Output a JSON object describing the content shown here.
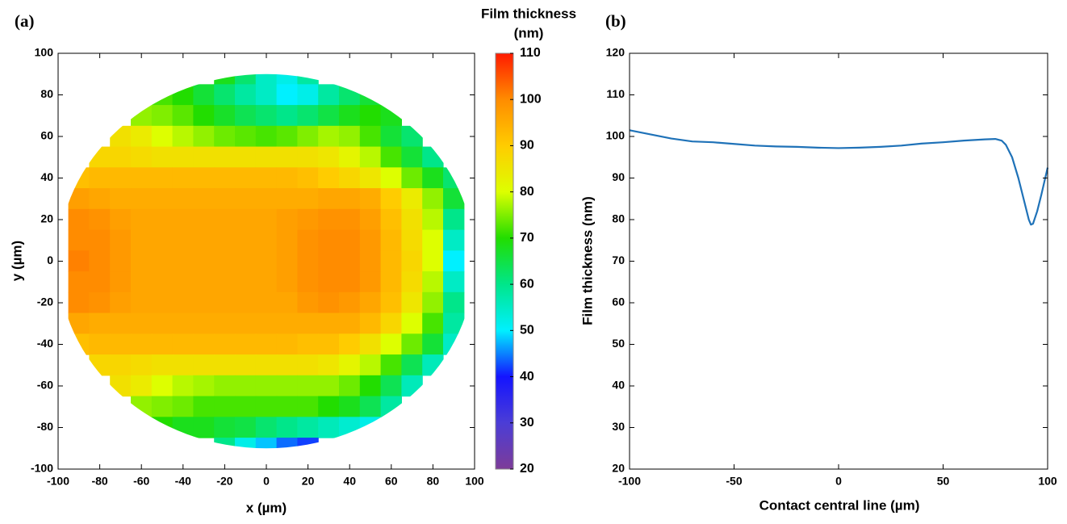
{
  "chart_data": [
    {
      "type": "contour",
      "panel_label": "(a)",
      "xlabel": "x (µm)",
      "ylabel": "y (µm)",
      "colorbar_label": [
        "Film thickness",
        "(nm)"
      ],
      "xlim": [
        -100,
        100
      ],
      "ylim": [
        -100,
        100
      ],
      "xticks": [
        -100,
        -80,
        -60,
        -40,
        -20,
        0,
        20,
        40,
        60,
        80,
        100
      ],
      "yticks": [
        -100,
        -80,
        -60,
        -40,
        -20,
        0,
        20,
        40,
        60,
        80,
        100
      ],
      "clim": [
        20,
        110
      ],
      "cticks": [
        20,
        30,
        40,
        50,
        60,
        70,
        80,
        90,
        100,
        110
      ],
      "colors": [
        "#7d3c98",
        "#4b3dd6",
        "#1414ff",
        "#00f0ff",
        "#00e68a",
        "#22dd00",
        "#ddff00",
        "#ffcc00",
        "#ff8c00",
        "#ff1a00"
      ],
      "x": [
        -90,
        -80,
        -70,
        -60,
        -50,
        -40,
        -30,
        -20,
        -10,
        0,
        10,
        20,
        30,
        40,
        50,
        60,
        70,
        80,
        90
      ],
      "y": [
        90,
        80,
        70,
        60,
        50,
        40,
        30,
        20,
        10,
        0,
        -10,
        -20,
        -30,
        -40,
        -50,
        -60,
        -70,
        -80,
        -90
      ],
      "z": [
        [
          null,
          null,
          null,
          null,
          null,
          null,
          null,
          68,
          62,
          55,
          52,
          58,
          null,
          null,
          null,
          null,
          null,
          null,
          null
        ],
        [
          null,
          null,
          null,
          null,
          72,
          70,
          66,
          62,
          58,
          55,
          50,
          52,
          58,
          62,
          66,
          null,
          null,
          null,
          null
        ],
        [
          null,
          null,
          null,
          76,
          75,
          73,
          70,
          67,
          64,
          62,
          60,
          62,
          65,
          68,
          70,
          68,
          null,
          null,
          null
        ],
        [
          null,
          null,
          86,
          84,
          80,
          78,
          76,
          74,
          73,
          72,
          73,
          75,
          77,
          76,
          72,
          66,
          62,
          null,
          null
        ],
        [
          null,
          88,
          88,
          87,
          86,
          86,
          86,
          86,
          86,
          86,
          86,
          86,
          85,
          82,
          78,
          72,
          66,
          60,
          null
        ],
        [
          92,
          93,
          93,
          93,
          93,
          93,
          93,
          93,
          93,
          93,
          93,
          92,
          90,
          88,
          85,
          80,
          74,
          68,
          62
        ],
        [
          97,
          96,
          95,
          95,
          95,
          95,
          95,
          95,
          95,
          95,
          95,
          95,
          96,
          96,
          95,
          90,
          84,
          76,
          66
        ],
        [
          100,
          99,
          97,
          96,
          96,
          96,
          96,
          96,
          96,
          96,
          97,
          98,
          99,
          99,
          97,
          92,
          86,
          78,
          60
        ],
        [
          100,
          100,
          98,
          96,
          96,
          96,
          96,
          96,
          96,
          96,
          97,
          99,
          100,
          100,
          98,
          93,
          87,
          80,
          55
        ],
        [
          101,
          100,
          98,
          96,
          96,
          96,
          96,
          96,
          96,
          96,
          97,
          99,
          100,
          100,
          98,
          93,
          88,
          80,
          50
        ],
        [
          100,
          100,
          98,
          96,
          96,
          96,
          96,
          96,
          96,
          96,
          97,
          99,
          100,
          100,
          98,
          93,
          87,
          78,
          55
        ],
        [
          100,
          99,
          97,
          96,
          96,
          96,
          96,
          96,
          96,
          96,
          96,
          98,
          99,
          98,
          96,
          92,
          85,
          76,
          60
        ],
        [
          96,
          95,
          95,
          95,
          95,
          95,
          95,
          95,
          95,
          95,
          95,
          95,
          95,
          95,
          93,
          88,
          80,
          72,
          58
        ],
        [
          92,
          93,
          93,
          93,
          93,
          93,
          93,
          93,
          93,
          93,
          93,
          92,
          92,
          90,
          86,
          80,
          74,
          66,
          55
        ],
        [
          null,
          88,
          88,
          87,
          86,
          86,
          86,
          86,
          86,
          86,
          86,
          86,
          85,
          82,
          78,
          72,
          64,
          56,
          null
        ],
        [
          null,
          null,
          86,
          84,
          80,
          78,
          77,
          76,
          76,
          76,
          76,
          76,
          76,
          74,
          70,
          64,
          56,
          null,
          null
        ],
        [
          null,
          null,
          null,
          76,
          75,
          74,
          72,
          72,
          72,
          72,
          72,
          72,
          70,
          68,
          64,
          58,
          null,
          null,
          null
        ],
        [
          null,
          null,
          null,
          null,
          70,
          68,
          68,
          66,
          65,
          62,
          60,
          58,
          56,
          54,
          52,
          null,
          null,
          null,
          null
        ],
        [
          null,
          null,
          null,
          null,
          null,
          null,
          null,
          60,
          52,
          48,
          44,
          42,
          null,
          null,
          null,
          null,
          null,
          null,
          null
        ]
      ]
    },
    {
      "type": "line",
      "panel_label": "(b)",
      "xlabel": "Contact central line (µm)",
      "ylabel": "Film thickness (nm)",
      "xlim": [
        -100,
        100
      ],
      "ylim": [
        20,
        120
      ],
      "xticks": [
        -100,
        -50,
        0,
        50,
        100
      ],
      "yticks": [
        20,
        30,
        40,
        50,
        60,
        70,
        80,
        90,
        100,
        110,
        120
      ],
      "color": "#1f72b8",
      "x": [
        -100,
        -90,
        -80,
        -70,
        -60,
        -50,
        -40,
        -30,
        -20,
        -10,
        0,
        10,
        20,
        30,
        40,
        50,
        60,
        70,
        75,
        78,
        80,
        83,
        86,
        89,
        91,
        92,
        93,
        95,
        97,
        100
      ],
      "values": [
        101.5,
        100.5,
        99.5,
        98.8,
        98.6,
        98.2,
        97.8,
        97.6,
        97.5,
        97.3,
        97.2,
        97.3,
        97.5,
        97.8,
        98.3,
        98.6,
        99.0,
        99.3,
        99.4,
        99.0,
        98.0,
        95,
        90,
        84,
        80,
        78.8,
        79,
        82,
        86,
        92.5
      ]
    }
  ]
}
